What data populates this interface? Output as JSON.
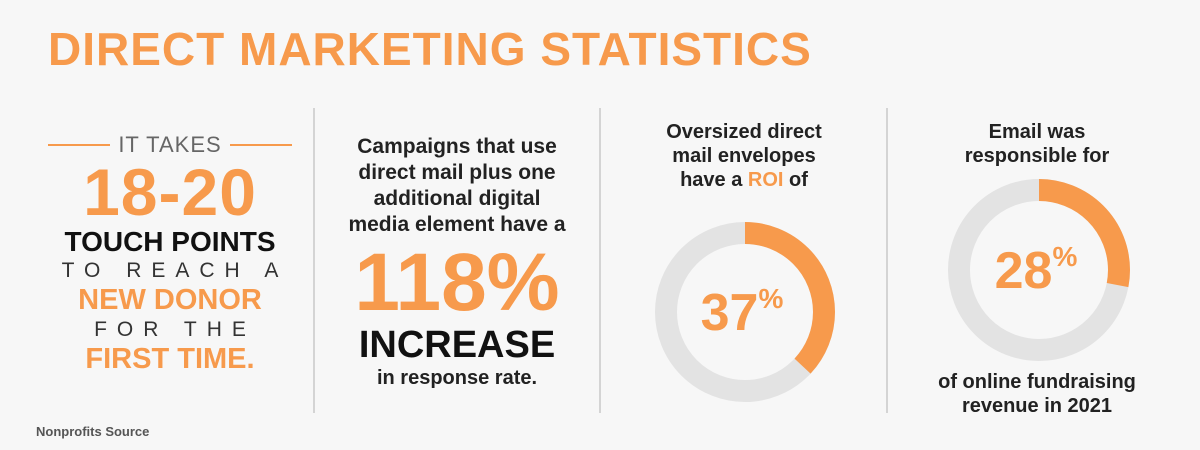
{
  "title": "DIRECT MARKETING STATISTICS",
  "source": "Nonprofits Source",
  "colors": {
    "accent": "#f79a4c",
    "track": "#e3e3e3",
    "text": "#222222",
    "background": "#f7f7f7"
  },
  "panel1": {
    "lead": "IT TAKES",
    "big": "18-20",
    "line1": "TOUCH POINTS",
    "line2": "TO REACH A",
    "line3": "NEW DONOR",
    "line4": "FOR THE",
    "line5": "FIRST TIME."
  },
  "panel2": {
    "intro1": "Campaigns that use",
    "intro2": "direct mail plus one",
    "intro3": "additional digital",
    "intro4": "media element have a",
    "big": "118%",
    "increase": "INCREASE",
    "tail": "in response rate."
  },
  "panel3": {
    "cap1": "Oversized direct",
    "cap2": "mail envelopes",
    "cap3_pre": "have a",
    "cap3_hl": "ROI",
    "cap3_post": "of",
    "value_text": "37",
    "pct_sign": "%"
  },
  "panel4": {
    "cap1": "Email was",
    "cap2": "responsible for",
    "value_text": "28",
    "pct_sign": "%",
    "bottom1": "of online fundraising",
    "bottom2_pre": "revenue in",
    "bottom2_year": "2021"
  },
  "chart_data": [
    {
      "type": "pie",
      "categories": [
        "ROI",
        ""
      ],
      "values": [
        37,
        63
      ]
    },
    {
      "type": "pie",
      "categories": [
        "Email",
        ""
      ],
      "values": [
        28,
        72
      ]
    }
  ]
}
